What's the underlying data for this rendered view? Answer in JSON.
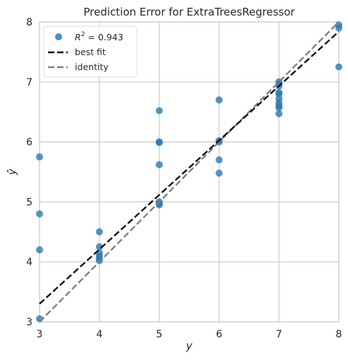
{
  "chart_data": {
    "type": "scatter",
    "title": "Prediction Error for ExtraTreesRegressor",
    "xlabel": "y",
    "ylabel": "ŷ",
    "xlim": [
      3,
      8
    ],
    "ylim": [
      3,
      8
    ],
    "x_ticks": [
      "3",
      "4",
      "5",
      "6",
      "7",
      "8"
    ],
    "y_ticks": [
      "3",
      "4",
      "5",
      "6",
      "7",
      "8"
    ],
    "grid": true,
    "legend_position": "top-left",
    "colors": {
      "points": "#2a7ab0",
      "best_fit": "#111111",
      "identity": "#808080",
      "grid": "#cccccc",
      "frame": "#cccccc"
    },
    "legend": {
      "r2_prefix": "R",
      "r2_exp": "2",
      "r2_value": "= 0.943",
      "best_fit": "best fit",
      "identity": "identity"
    },
    "best_fit_line": {
      "x": [
        3,
        8
      ],
      "y": [
        3.3,
        7.84
      ]
    },
    "identity_line": {
      "x": [
        3,
        8
      ],
      "y": [
        3,
        8
      ]
    },
    "points": [
      [
        3,
        5.75
      ],
      [
        3,
        4.8
      ],
      [
        3,
        4.2
      ],
      [
        3,
        3.05
      ],
      [
        4,
        4.5
      ],
      [
        4,
        4.25
      ],
      [
        4,
        4.15
      ],
      [
        4,
        4.1
      ],
      [
        4,
        4.05
      ],
      [
        4,
        4.02
      ],
      [
        5,
        6.52
      ],
      [
        5,
        6.0
      ],
      [
        5,
        5.99
      ],
      [
        5,
        5.62
      ],
      [
        5,
        5.0
      ],
      [
        5,
        4.97
      ],
      [
        5,
        4.95
      ],
      [
        6,
        6.7
      ],
      [
        6,
        6.02
      ],
      [
        6,
        6.0
      ],
      [
        6,
        5.7
      ],
      [
        6,
        5.48
      ],
      [
        7,
        7.0
      ],
      [
        7,
        6.97
      ],
      [
        7,
        6.93
      ],
      [
        7,
        6.82
      ],
      [
        7,
        6.8
      ],
      [
        7,
        6.72
      ],
      [
        7,
        6.65
      ],
      [
        7,
        6.6
      ],
      [
        7,
        6.57
      ],
      [
        7,
        6.47
      ],
      [
        8,
        7.95
      ],
      [
        8,
        7.9
      ],
      [
        8,
        7.25
      ]
    ]
  }
}
